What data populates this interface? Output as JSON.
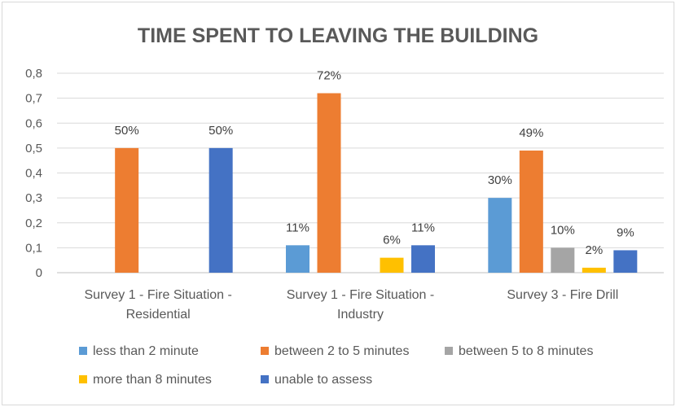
{
  "chart_data": {
    "type": "bar",
    "title": "TIME SPENT TO LEAVING THE BUILDING",
    "xlabel": "",
    "ylabel": "",
    "ylim": [
      0,
      0.8
    ],
    "yticks": [
      "0",
      "0,1",
      "0,2",
      "0,3",
      "0,4",
      "0,5",
      "0,6",
      "0,7",
      "0,8"
    ],
    "categories": [
      [
        "Survey 1 - Fire Situation -",
        "Residential"
      ],
      [
        "Survey 1 - Fire Situation -",
        "Industry"
      ],
      [
        "Survey 3 - Fire Drill"
      ]
    ],
    "series": [
      {
        "name": "less than 2 minute",
        "color": "#5b9bd5",
        "values": [
          0,
          0.11,
          0.3
        ],
        "labels": [
          "",
          "11%",
          "30%"
        ]
      },
      {
        "name": "between 2 to 5 minutes",
        "color": "#ed7d31",
        "values": [
          0.5,
          0.72,
          0.49
        ],
        "labels": [
          "50%",
          "72%",
          "49%"
        ]
      },
      {
        "name": "between 5 to 8 minutes",
        "color": "#a5a5a5",
        "values": [
          0,
          0,
          0.1
        ],
        "labels": [
          "",
          "",
          "10%"
        ]
      },
      {
        "name": "more than 8 minutes",
        "color": "#ffc000",
        "values": [
          0,
          0.06,
          0.02
        ],
        "labels": [
          "",
          "6%",
          "2%"
        ]
      },
      {
        "name": "unable to assess",
        "color": "#4472c4",
        "values": [
          0.5,
          0.11,
          0.09
        ],
        "labels": [
          "50%",
          "11%",
          "9%"
        ]
      }
    ],
    "grid": true,
    "legend": "bottom"
  }
}
